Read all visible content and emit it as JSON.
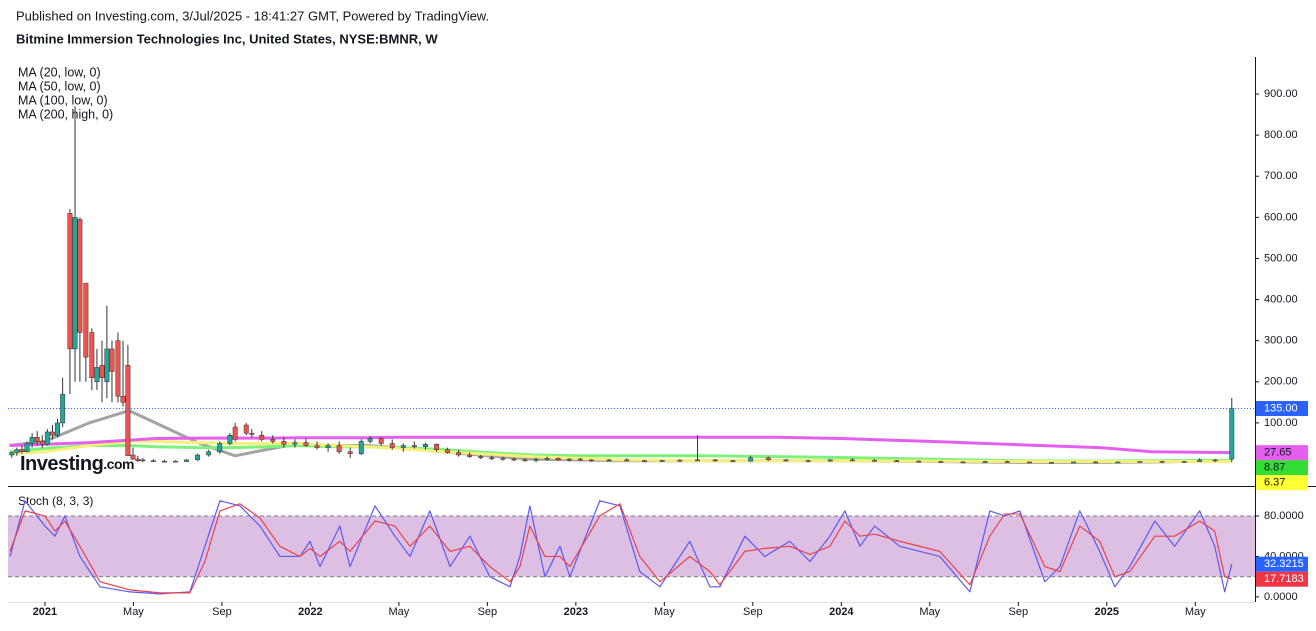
{
  "chart_data": [
    {
      "type": "candlestick",
      "title": "Published on Investing.com, 3/Jul/2025 - 18:41:27 GMT, Powered by TradingView.",
      "subtitle": "Bitmine Immersion Technologies Inc, United States, NYSE:BMNR, W",
      "logo": {
        "name": "Investing",
        "suffix": ".com"
      },
      "xlim": [
        -1.67,
        54.7
      ],
      "ylim": [
        -51,
        990
      ],
      "yticks": [
        {
          "value": 100,
          "label": "100.00"
        },
        {
          "value": 200,
          "label": "200.00"
        },
        {
          "value": 300,
          "label": "300.00"
        },
        {
          "value": 400,
          "label": "400.00"
        },
        {
          "value": 500,
          "label": "500.00"
        },
        {
          "value": 600,
          "label": "600.00"
        },
        {
          "value": 700,
          "label": "700.00"
        },
        {
          "value": 800,
          "label": "800.00"
        },
        {
          "value": 900,
          "label": "900.00"
        }
      ],
      "up_color": "#26a69a",
      "down_color": "#ef5350",
      "candles": {
        "x": [
          -1.5,
          -1.27,
          -1.04,
          -0.81,
          -0.58,
          -0.35,
          -0.12,
          0.11,
          0.34,
          0.57,
          0.8,
          1.13,
          1.36,
          1.58,
          1.85,
          2.12,
          2.35,
          2.58,
          2.8,
          3.03,
          3.3,
          3.53,
          3.75,
          3.98,
          4.2,
          4.43,
          4.9,
          5.4,
          5.9,
          6.4,
          6.9,
          7.4,
          7.9,
          8.36,
          8.6,
          9.1,
          9.35,
          9.8,
          10.3,
          10.8,
          11.3,
          11.8,
          12.3,
          12.8,
          13.3,
          13.8,
          14.3,
          14.7,
          15.2,
          15.7,
          16.2,
          16.7,
          17.2,
          17.7,
          18.2,
          18.7,
          19.2,
          19.7,
          20.2,
          20.7,
          21.2,
          21.7,
          22.2,
          22.7,
          23.2,
          23.7,
          24.2,
          24.7,
          25.5,
          26.3,
          27.1,
          27.9,
          28.7,
          29.5,
          30.3,
          31.1,
          31.9,
          32.7,
          33.5,
          34.5,
          35.5,
          36.5,
          37.5,
          38.5,
          39.5,
          40.5,
          41.5,
          42.5,
          43.5,
          44.5,
          45.5,
          46.5,
          47.5,
          48.5,
          49.5,
          50.5,
          51.5,
          52.2,
          52.9,
          53.65
        ],
        "open": [
          22,
          28,
          35,
          30,
          50,
          65,
          55,
          48,
          78,
          70,
          100,
          610,
          280,
          595,
          440,
          320,
          200,
          240,
          200,
          280,
          300,
          165,
          240,
          22,
          12,
          8,
          8,
          6,
          7,
          6,
          10,
          22,
          30,
          50,
          90,
          95,
          75,
          70,
          60,
          55,
          48,
          52,
          45,
          40,
          45,
          30,
          25,
          55,
          62,
          50,
          40,
          45,
          42,
          48,
          35,
          28,
          22,
          18,
          15,
          14,
          12,
          10,
          9,
          12,
          14,
          10,
          12,
          10,
          9,
          10,
          8,
          7,
          9,
          8,
          10,
          8,
          7,
          15,
          10,
          8,
          7,
          10,
          9,
          8,
          7,
          6,
          5,
          4,
          6,
          5,
          3,
          4,
          5,
          4,
          5,
          6,
          5,
          6,
          10,
          12
        ],
        "high": [
          30,
          40,
          45,
          55,
          75,
          80,
          70,
          85,
          95,
          110,
          210,
          620,
          870,
          600,
          440,
          330,
          280,
          300,
          385,
          300,
          320,
          300,
          290,
          40,
          20,
          15,
          12,
          10,
          9,
          12,
          25,
          35,
          55,
          75,
          100,
          100,
          85,
          80,
          70,
          65,
          60,
          62,
          55,
          50,
          55,
          40,
          60,
          68,
          65,
          60,
          50,
          55,
          52,
          50,
          40,
          35,
          28,
          22,
          20,
          18,
          16,
          14,
          15,
          18,
          16,
          14,
          15,
          12,
          12,
          14,
          10,
          10,
          12,
          70,
          12,
          10,
          20,
          18,
          12,
          10,
          12,
          14,
          12,
          10,
          9,
          8,
          7,
          8,
          8,
          6,
          5,
          6,
          7,
          6,
          7,
          8,
          7,
          14,
          12,
          161
        ],
        "low": [
          15,
          20,
          25,
          28,
          40,
          45,
          40,
          45,
          60,
          65,
          90,
          170,
          200,
          200,
          200,
          180,
          180,
          150,
          160,
          150,
          150,
          140,
          130,
          10,
          5,
          5,
          5,
          4,
          5,
          5,
          8,
          18,
          25,
          45,
          55,
          70,
          65,
          55,
          50,
          40,
          40,
          42,
          35,
          30,
          25,
          15,
          22,
          50,
          45,
          35,
          30,
          38,
          35,
          30,
          25,
          18,
          15,
          12,
          10,
          8,
          7,
          6,
          4,
          8,
          8,
          6,
          8,
          6,
          6,
          7,
          5,
          5,
          6,
          7,
          6,
          5,
          6,
          8,
          6,
          5,
          6,
          7,
          6,
          5,
          5,
          4,
          3,
          3,
          4,
          2,
          2,
          3,
          3,
          3,
          4,
          4,
          4,
          5,
          5,
          5
        ],
        "close": [
          28,
          35,
          30,
          50,
          65,
          55,
          48,
          78,
          70,
          100,
          170,
          280,
          600,
          320,
          260,
          210,
          235,
          210,
          280,
          225,
          165,
          150,
          20,
          12,
          8,
          10,
          6,
          7,
          6,
          10,
          22,
          30,
          50,
          70,
          60,
          75,
          72,
          60,
          55,
          48,
          52,
          45,
          40,
          45,
          30,
          25,
          55,
          62,
          50,
          40,
          45,
          42,
          48,
          35,
          28,
          22,
          18,
          15,
          14,
          12,
          10,
          9,
          12,
          14,
          10,
          12,
          10,
          9,
          10,
          8,
          7,
          9,
          8,
          10,
          8,
          7,
          15,
          10,
          8,
          7,
          10,
          9,
          8,
          7,
          6,
          5,
          4,
          6,
          5,
          3,
          4,
          5,
          4,
          5,
          6,
          5,
          6,
          10,
          8,
          135
        ]
      },
      "series": [
        {
          "name": "MA (20, low, 0)",
          "color": "#a3a3a3",
          "x": [
            -1.6,
            0,
            2,
            3.8,
            5,
            7,
            8.6,
            10,
            11.5,
            13,
            14.5,
            16,
            18,
            20,
            22,
            24,
            26,
            28,
            30,
            33,
            36,
            40,
            44,
            47.7,
            50,
            53.65
          ],
          "values": [
            45,
            55,
            100,
            130,
            100,
            50,
            20,
            35,
            50,
            45,
            45,
            40,
            30,
            20,
            12,
            10,
            8,
            8,
            8,
            8,
            8,
            6,
            4,
            4,
            5,
            8
          ]
        },
        {
          "name": "MA (50, low, 0)",
          "color": "#7cf27c",
          "x": [
            -1.6,
            0,
            2,
            3.8,
            5,
            7,
            8.6,
            10,
            11.5,
            13,
            14.5,
            16,
            18,
            20,
            22,
            24,
            26,
            28,
            30,
            33,
            36,
            40,
            44,
            47.7,
            50,
            53.65
          ],
          "values": [
            30,
            38,
            45,
            45,
            42,
            40,
            40,
            42,
            45,
            42,
            42,
            40,
            35,
            28,
            22,
            20,
            20,
            20,
            20,
            18,
            16,
            12,
            8,
            7,
            8,
            8.87
          ]
        },
        {
          "name": "MA (100, low, 0)",
          "color": "#f6f07a",
          "x": [
            -1.6,
            0,
            2,
            3.8,
            5,
            7,
            8.6,
            10,
            11.5,
            13,
            14.5,
            16,
            18,
            20,
            22,
            24,
            26,
            28,
            30,
            33,
            36,
            40,
            44,
            47.7,
            50,
            53.65
          ],
          "values": [
            25,
            30,
            45,
            55,
            55,
            52,
            50,
            50,
            50,
            45,
            42,
            38,
            30,
            24,
            18,
            14,
            10,
            9,
            8,
            8,
            8,
            7,
            6,
            6,
            6,
            6.37
          ]
        },
        {
          "name": "MA (200, high, 0)",
          "color": "#e45ff0",
          "x": [
            -1.6,
            0,
            2,
            3.8,
            5,
            7,
            8.6,
            10,
            11.5,
            13,
            14.5,
            16,
            18,
            20,
            22,
            24,
            26,
            28,
            30,
            33,
            36,
            40,
            44,
            47.7,
            50,
            53.65
          ],
          "values": [
            45,
            48,
            52,
            58,
            62,
            63,
            63,
            63,
            64,
            64,
            64,
            65,
            65,
            65,
            65,
            65,
            65,
            65,
            65,
            65,
            62,
            55,
            47,
            40,
            30,
            27.65
          ]
        }
      ],
      "price_labels": [
        {
          "value": 135,
          "label": "135.00",
          "color": "#2962ff",
          "text_color": "#ffffff"
        },
        {
          "value": 27.65,
          "color": "#e45ff0",
          "text_color": "#131722"
        },
        {
          "value": 8.87,
          "color": "#33dd33",
          "text_color": "#131722"
        },
        {
          "value": 6.37,
          "color": "#ffff33",
          "text_color": "#131722"
        }
      ]
    },
    {
      "type": "line",
      "title": "Stoch (8, 3, 3)",
      "xlim": [
        -1.67,
        54.7
      ],
      "ylim": [
        -5,
        108.6
      ],
      "yticks": [
        {
          "value": 0,
          "label": "0.0000"
        },
        {
          "value": 40,
          "label": "40.0000"
        },
        {
          "value": 80,
          "label": "80.0000"
        }
      ],
      "xticks": [
        {
          "value": 0,
          "label": "2021"
        },
        {
          "value": 4,
          "label": "May"
        },
        {
          "value": 8,
          "label": "Sep"
        },
        {
          "value": 12,
          "label": "2022"
        },
        {
          "value": 16,
          "label": "May"
        },
        {
          "value": 20,
          "label": "Sep"
        },
        {
          "value": 24,
          "label": "2023"
        },
        {
          "value": 28,
          "label": "May"
        },
        {
          "value": 32,
          "label": "Sep"
        },
        {
          "value": 36,
          "label": "2024"
        },
        {
          "value": 40,
          "label": "May"
        },
        {
          "value": 44,
          "label": "Sep"
        },
        {
          "value": 48,
          "label": "2025"
        },
        {
          "value": 52,
          "label": "May"
        }
      ],
      "levels": [
        20,
        80
      ],
      "band_color": "#dcbfe3",
      "series": [
        {
          "color": "#5b5bf0",
          "x": [
            -1.58,
            -0.9,
            0,
            0.45,
            0.9,
            1.58,
            2.49,
            3.84,
            5.2,
            6.55,
            7.23,
            7.91,
            8.81,
            9.72,
            10.62,
            11.53,
            11.98,
            12.43,
            13.33,
            13.79,
            14.92,
            15.82,
            16.5,
            17.4,
            18.31,
            19.21,
            20.11,
            21.02,
            21.47,
            21.92,
            22.6,
            23.28,
            23.73,
            25.08,
            25.99,
            26.89,
            27.8,
            29.15,
            30.06,
            30.51,
            31.64,
            32.54,
            33.67,
            34.58,
            35.48,
            36.16,
            36.84,
            37.51,
            38.64,
            40.45,
            41.81,
            42.71,
            43.39,
            44.07,
            45.2,
            45.88,
            46.78,
            47.68,
            48.36,
            49.04,
            50.17,
            51.07,
            52.2,
            52.88,
            53.33,
            53.65
          ],
          "values": [
            40,
            95,
            70,
            60,
            80,
            40,
            10,
            5,
            3,
            5,
            50,
            95,
            90,
            70,
            40,
            40,
            55,
            30,
            70,
            30,
            90,
            60,
            40,
            85,
            30,
            60,
            20,
            10,
            40,
            90,
            20,
            50,
            20,
            95,
            90,
            25,
            10,
            55,
            10,
            10,
            60,
            40,
            55,
            35,
            60,
            85,
            50,
            70,
            50,
            40,
            5,
            85,
            80,
            85,
            15,
            30,
            85,
            45,
            10,
            30,
            75,
            50,
            85,
            50,
            5,
            32.3215
          ]
        },
        {
          "color": "#e8434e",
          "x": [
            -1.58,
            -0.9,
            0,
            0.45,
            0.9,
            1.58,
            2.49,
            3.84,
            5.2,
            6.55,
            7.23,
            7.91,
            8.81,
            9.72,
            10.62,
            11.53,
            11.98,
            12.43,
            13.33,
            13.79,
            14.92,
            15.82,
            16.5,
            17.4,
            18.31,
            19.21,
            20.11,
            21.02,
            21.47,
            21.92,
            22.6,
            23.28,
            23.73,
            25.08,
            25.99,
            26.89,
            27.8,
            29.15,
            30.06,
            30.51,
            31.64,
            32.54,
            33.67,
            34.58,
            35.48,
            36.16,
            36.84,
            37.51,
            38.64,
            40.45,
            41.81,
            42.71,
            43.39,
            44.07,
            45.2,
            45.88,
            46.78,
            47.68,
            48.36,
            49.04,
            50.17,
            51.07,
            52.2,
            52.88,
            53.33,
            53.65
          ],
          "values": [
            45,
            85,
            80,
            65,
            75,
            50,
            15,
            7,
            4,
            4,
            35,
            85,
            92,
            78,
            50,
            40,
            48,
            40,
            55,
            45,
            75,
            70,
            50,
            70,
            45,
            50,
            30,
            15,
            30,
            70,
            40,
            40,
            30,
            80,
            92,
            40,
            15,
            40,
            25,
            12,
            45,
            48,
            50,
            42,
            50,
            75,
            60,
            62,
            55,
            45,
            12,
            60,
            82,
            82,
            30,
            25,
            70,
            55,
            20,
            25,
            60,
            60,
            75,
            65,
            20,
            17.7183
          ]
        }
      ],
      "price_labels": [
        {
          "value": 32.3215,
          "color": "#2962ff",
          "text_color": "#ffffff"
        },
        {
          "value": 17.7183,
          "color": "#f23645",
          "text_color": "#ffffff"
        }
      ]
    }
  ]
}
